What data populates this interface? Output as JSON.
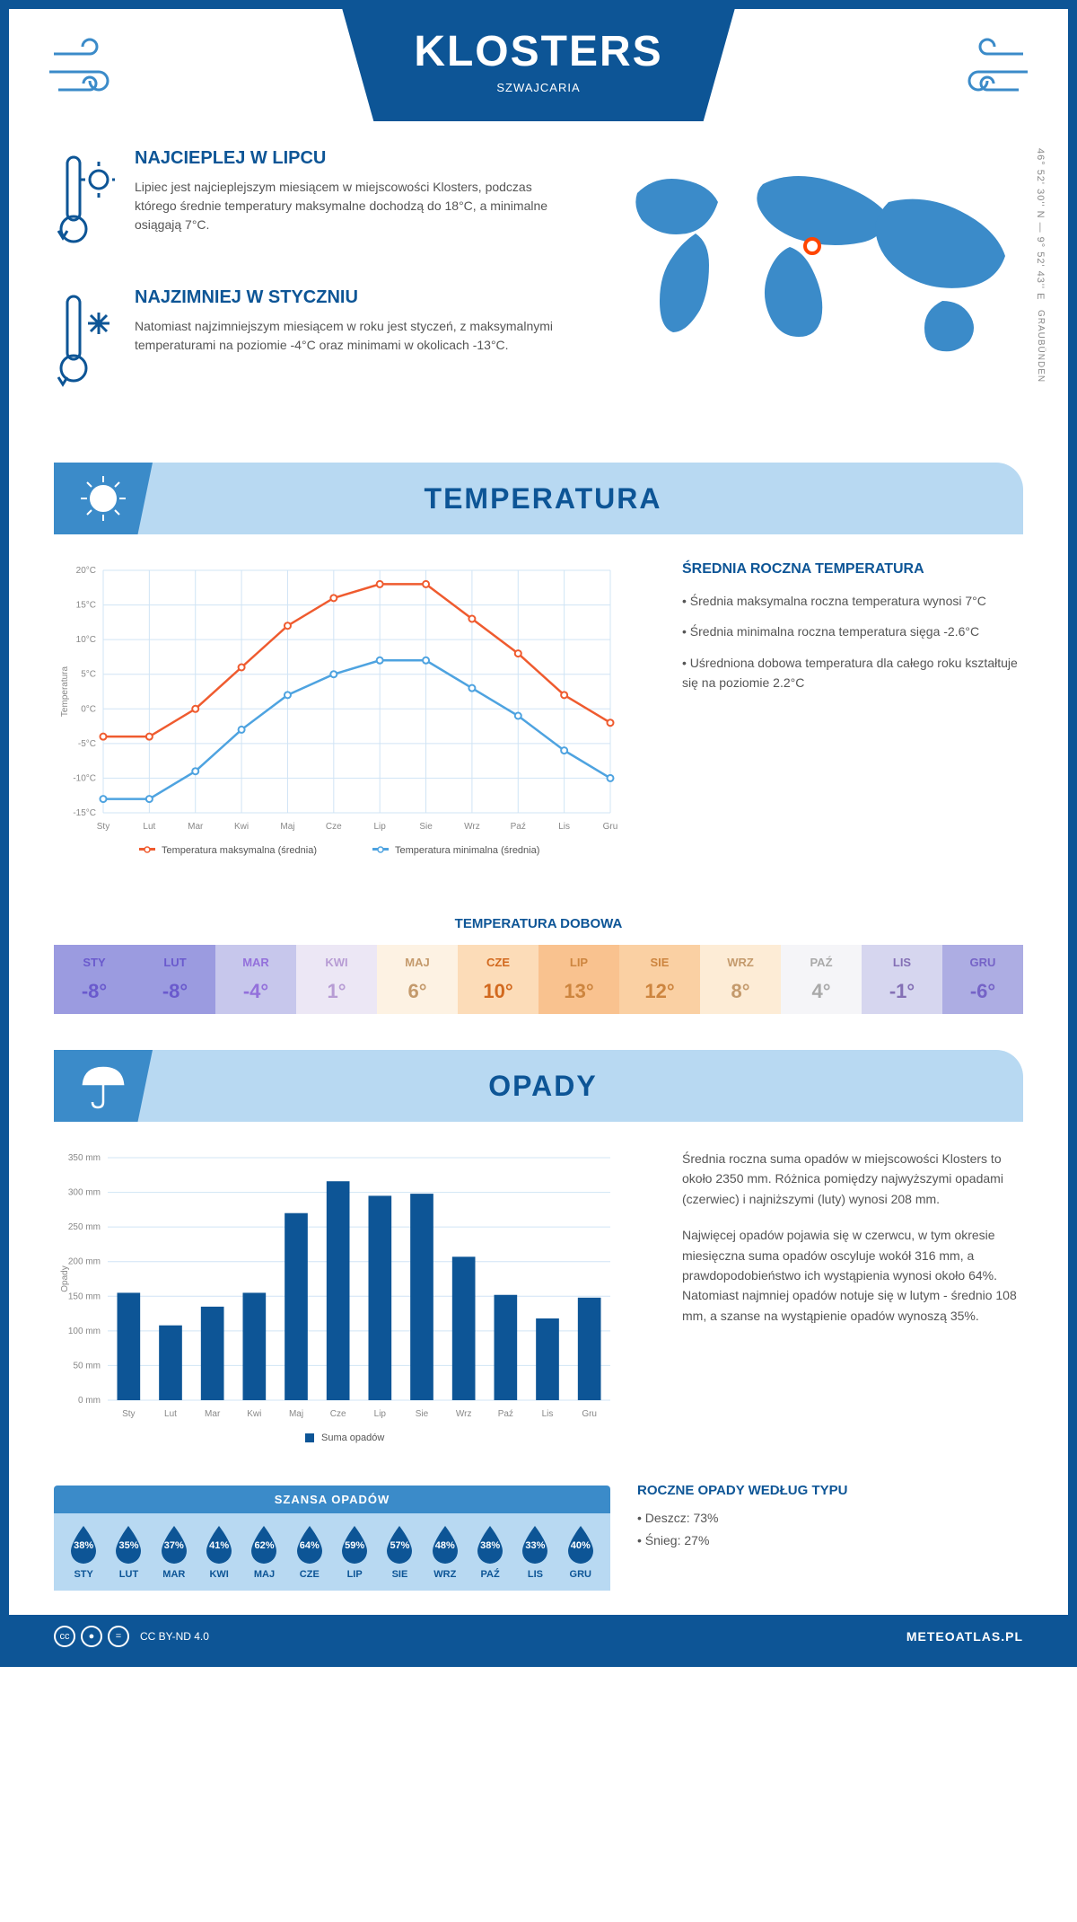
{
  "header": {
    "title": "KLOSTERS",
    "subtitle": "SZWAJCARIA"
  },
  "coords": "46° 52' 30'' N — 9° 52' 43'' E",
  "region": "GRAUBÜNDEN",
  "marker": {
    "left_pct": 49,
    "top_pct": 32
  },
  "warmest": {
    "title": "NAJCIEPLEJ W LIPCU",
    "text": "Lipiec jest najcieplejszym miesiącem w miejscowości Klosters, podczas którego średnie temperatury maksymalne dochodzą do 18°C, a minimalne osiągają 7°C."
  },
  "coldest": {
    "title": "NAJZIMNIEJ W STYCZNIU",
    "text": "Natomiast najzimniejszym miesiącem w roku jest styczeń, z maksymalnymi temperaturami na poziomie -4°C oraz minimami w okolicach -13°C."
  },
  "temperature": {
    "section_title": "TEMPERATURA",
    "chart": {
      "type": "line",
      "months": [
        "Sty",
        "Lut",
        "Mar",
        "Kwi",
        "Maj",
        "Cze",
        "Lip",
        "Sie",
        "Wrz",
        "Paź",
        "Lis",
        "Gru"
      ],
      "max": [
        -4,
        -4,
        0,
        6,
        12,
        16,
        18,
        18,
        13,
        8,
        2,
        -2
      ],
      "min": [
        -13,
        -13,
        -9,
        -3,
        2,
        5,
        7,
        7,
        3,
        -1,
        -6,
        -10
      ],
      "ylim": [
        -15,
        20
      ],
      "ytick_step": 5,
      "max_color": "#ef5b2f",
      "min_color": "#4ea3e0",
      "grid_color": "#d0e4f5",
      "bg": "#ffffff",
      "ylabel": "Temperatura",
      "legend_max": "Temperatura maksymalna (średnia)",
      "legend_min": "Temperatura minimalna (średnia)"
    },
    "info_title": "ŚREDNIA ROCZNA TEMPERATURA",
    "info_bullets": [
      "• Średnia maksymalna roczna temperatura wynosi 7°C",
      "• Średnia minimalna roczna temperatura sięga -2.6°C",
      "• Uśredniona dobowa temperatura dla całego roku kształtuje się na poziomie 2.2°C"
    ],
    "daily_title": "TEMPERATURA DOBOWA",
    "daily": {
      "months": [
        "STY",
        "LUT",
        "MAR",
        "KWI",
        "MAJ",
        "CZE",
        "LIP",
        "SIE",
        "WRZ",
        "PAŹ",
        "LIS",
        "GRU"
      ],
      "values": [
        "-8°",
        "-8°",
        "-4°",
        "1°",
        "6°",
        "10°",
        "13°",
        "12°",
        "8°",
        "4°",
        "-1°",
        "-6°"
      ],
      "colors": [
        "#9b9be0",
        "#9b9be0",
        "#c7c7ec",
        "#ece7f5",
        "#fdf2e3",
        "#fcdcb8",
        "#f9c28f",
        "#fad0a3",
        "#fdecd6",
        "#f5f5f8",
        "#d6d6ef",
        "#adadE3"
      ],
      "text_colors": [
        "#6a5acd",
        "#6a5acd",
        "#9370db",
        "#b79cd4",
        "#c49a6c",
        "#d2691e",
        "#cd853f",
        "#cd853f",
        "#c49a6c",
        "#a9a9a9",
        "#8470b5",
        "#7563c7"
      ]
    }
  },
  "precipitation": {
    "section_title": "OPADY",
    "chart": {
      "type": "bar",
      "months": [
        "Sty",
        "Lut",
        "Mar",
        "Kwi",
        "Maj",
        "Cze",
        "Lip",
        "Sie",
        "Wrz",
        "Paź",
        "Lis",
        "Gru"
      ],
      "values": [
        155,
        108,
        135,
        155,
        270,
        316,
        295,
        298,
        207,
        152,
        118,
        148
      ],
      "ylim": [
        0,
        350
      ],
      "ytick_step": 50,
      "bar_color": "#0d5596",
      "grid_color": "#d0e4f5",
      "ylabel": "Opady",
      "legend": "Suma opadów"
    },
    "info_p1": "Średnia roczna suma opadów w miejscowości Klosters to około 2350 mm. Różnica pomiędzy najwyższymi opadami (czerwiec) i najniższymi (luty) wynosi 208 mm.",
    "info_p2": "Najwięcej opadów pojawia się w czerwcu, w tym okresie miesięczna suma opadów oscyluje wokół 316 mm, a prawdopodobieństwo ich wystąpienia wynosi około 64%. Natomiast najmniej opadów notuje się w lutym - średnio 108 mm, a szanse na wystąpienie opadów wynoszą 35%.",
    "chance_title": "SZANSA OPADÓW",
    "chance": {
      "months": [
        "STY",
        "LUT",
        "MAR",
        "KWI",
        "MAJ",
        "CZE",
        "LIP",
        "SIE",
        "WRZ",
        "PAŹ",
        "LIS",
        "GRU"
      ],
      "pct": [
        "38%",
        "35%",
        "37%",
        "41%",
        "62%",
        "64%",
        "59%",
        "57%",
        "48%",
        "38%",
        "33%",
        "40%"
      ],
      "drop_color": "#0d5596"
    },
    "yearly_type_title": "ROCZNE OPADY WEDŁUG TYPU",
    "yearly_types": [
      "• Deszcz: 73%",
      "• Śnieg: 27%"
    ]
  },
  "footer": {
    "license": "CC BY-ND 4.0",
    "brand": "METEOATLAS.PL"
  },
  "colors": {
    "primary": "#0d5596",
    "light_blue": "#b8d9f2",
    "mid_blue": "#3b8bc9"
  }
}
